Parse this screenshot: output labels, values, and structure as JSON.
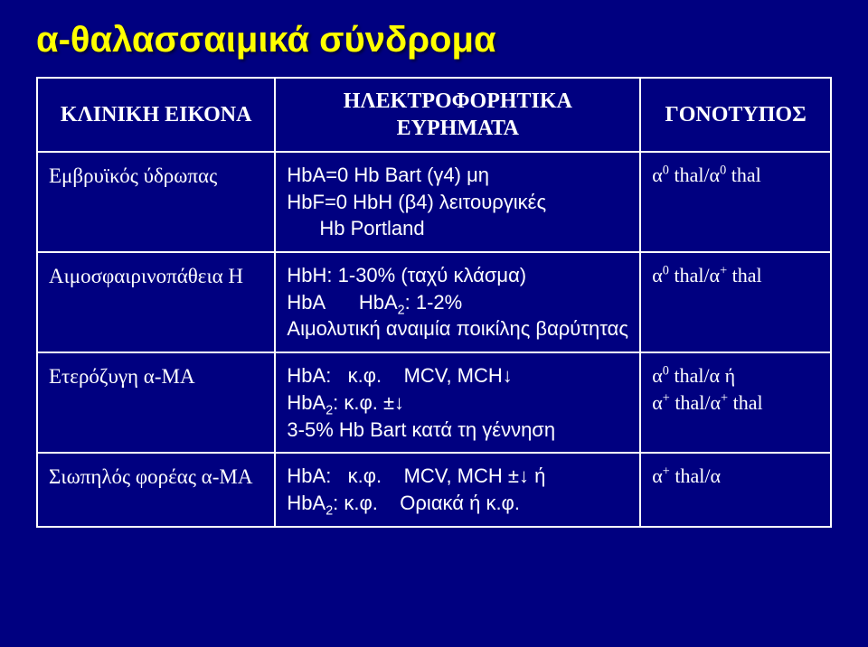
{
  "colors": {
    "background": "#000080",
    "title": "#ffff00",
    "border": "#ffffff",
    "text": "#ffffff"
  },
  "title": "α-θαλασσαιμικά σύνδρομα",
  "headers": {
    "col1": "ΚΛΙΝΙΚΗ ΕΙΚΟΝΑ",
    "col2": "ΗΛΕΚΤΡΟΦΟΡΗΤΙΚΑ ΕΥΡΗΜΑΤΑ",
    "col3": "ΓΟΝΟΤΥΠΟΣ"
  },
  "rows": [
    {
      "clinical": "Εμβρυϊκός ύδρωπας",
      "findings_line1": "HbA=0 Hb Bart (γ4) μη",
      "findings_line2": "HbF=0 HbH (β4) λειτουργικές",
      "findings_line3": "Hb Portland",
      "genotype_html": "α<sup>0</sup> thal/α<sup>0</sup> thal"
    },
    {
      "clinical": "Αιμοσφαιρινοπάθεια Η",
      "findings_line1": "HbH: 1-30% (ταχύ κλάσμα)",
      "findings_line2_html": "HbA&nbsp;&nbsp;&nbsp;&nbsp;&nbsp;&nbsp;HbA<sub>2</sub>: 1-2%",
      "findings_line3": "Αιμολυτική αναιμία ποικίλης βαρύτητας",
      "genotype_html": "α<sup>0</sup> thal/α<sup>+</sup> thal"
    },
    {
      "clinical": "Ετερόζυγη α-ΜΑ",
      "findings_line1_html": "HbA:&nbsp;&nbsp;&nbsp;κ.φ.&nbsp;&nbsp;&nbsp;&nbsp;MCV, MCH↓",
      "findings_line2_html": "HbA<sub>2</sub>: κ.φ. ±↓",
      "findings_line3": "3-5% Hb Bart κατά τη γέννηση",
      "genotype_html": "α<sup>0</sup> thal/α ή<br>α<sup>+</sup> thal/α<sup>+</sup> thal"
    },
    {
      "clinical": "Σιωπηλός φορέας α-ΜΑ",
      "findings_line1_html": "HbA:&nbsp;&nbsp;&nbsp;κ.φ.&nbsp;&nbsp;&nbsp;&nbsp;MCV, MCH ±↓ ή",
      "findings_line2_html": "HbA<sub>2</sub>: κ.φ.&nbsp;&nbsp;&nbsp;&nbsp;Οριακά ή κ.φ.",
      "genotype_html": "α<sup>+</sup> thal/α"
    }
  ]
}
